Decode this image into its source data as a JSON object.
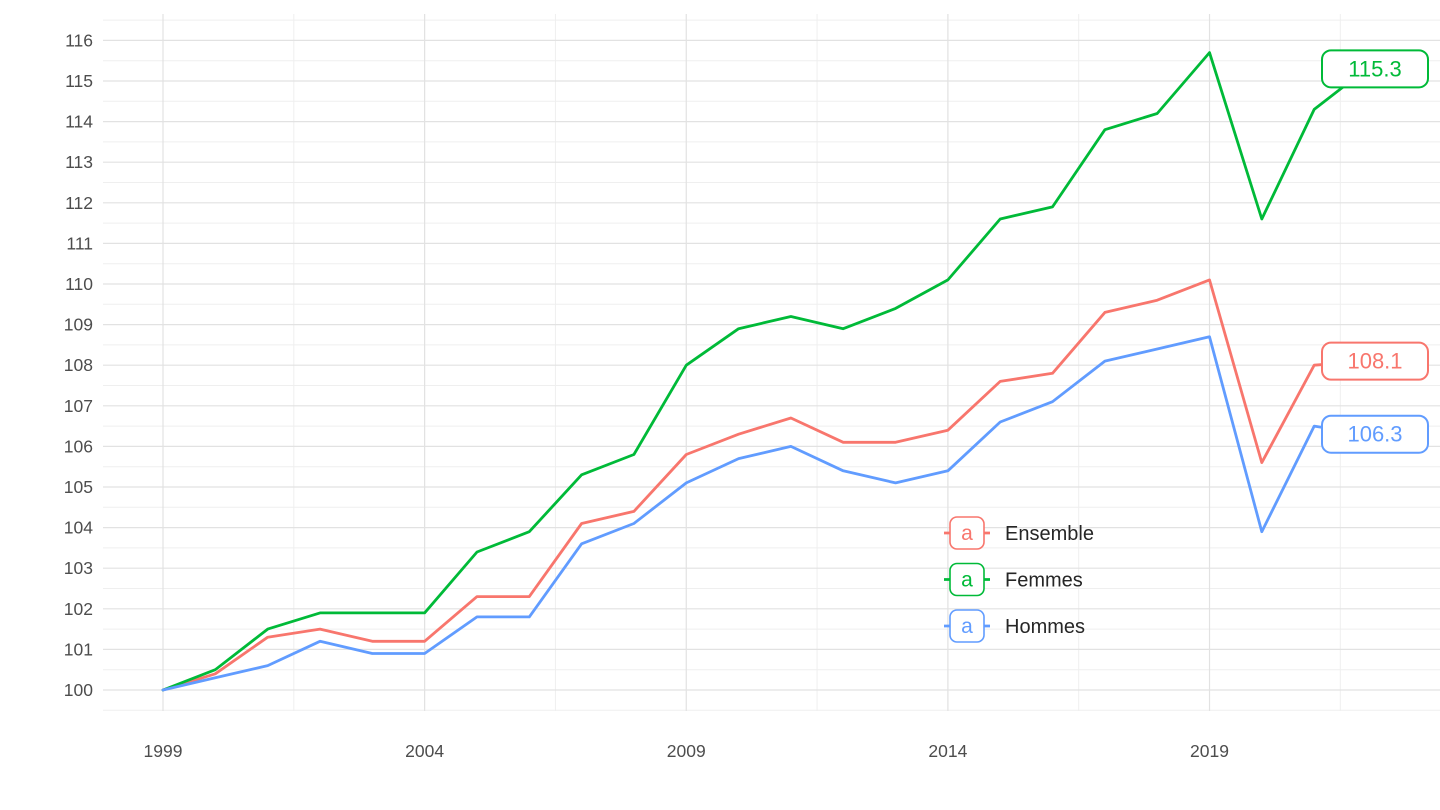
{
  "figure": {
    "background": "#ffffff",
    "grid_major_color": "#e2e2e2",
    "grid_minor_color": "#efefef",
    "axis_text_color": "#4d4d4d",
    "legend_text_color": "#262626",
    "label_box_fill": "#ffffff"
  },
  "legend": {
    "key_glyph": "a",
    "items": [
      {
        "label": "Ensemble",
        "color": "#F8766D"
      },
      {
        "label": "Femmes",
        "color": "#00BA38"
      },
      {
        "label": "Hommes",
        "color": "#619CFF"
      }
    ]
  },
  "chart_data": {
    "type": "line",
    "title": "",
    "xlabel": "",
    "ylabel": "",
    "x": [
      1999,
      2000,
      2001,
      2002,
      2003,
      2004,
      2005,
      2006,
      2007,
      2008,
      2009,
      2010,
      2011,
      2012,
      2013,
      2014,
      2015,
      2016,
      2017,
      2018,
      2019,
      2020,
      2021,
      2022
    ],
    "series": [
      {
        "name": "Ensemble",
        "color": "#F8766D",
        "end_label": "108.1",
        "values": [
          100,
          100.4,
          101.3,
          101.5,
          101.2,
          101.2,
          102.3,
          102.3,
          104.1,
          104.4,
          105.8,
          106.3,
          106.7,
          106.1,
          106.1,
          106.4,
          107.6,
          107.8,
          109.3,
          109.6,
          110.1,
          105.6,
          108.0,
          108.1
        ]
      },
      {
        "name": "Femmes",
        "color": "#00BA38",
        "end_label": "115.3",
        "values": [
          100,
          100.5,
          101.5,
          101.9,
          101.9,
          101.9,
          103.4,
          103.9,
          105.3,
          105.8,
          108.0,
          108.9,
          109.2,
          108.9,
          109.4,
          110.1,
          111.6,
          111.9,
          113.8,
          114.2,
          115.7,
          111.6,
          114.3,
          115.3
        ]
      },
      {
        "name": "Hommes",
        "color": "#619CFF",
        "end_label": "106.3",
        "values": [
          100,
          100.3,
          100.6,
          101.2,
          100.9,
          100.9,
          101.8,
          101.8,
          103.6,
          104.1,
          105.1,
          105.7,
          106.0,
          105.4,
          105.1,
          105.4,
          106.6,
          107.1,
          108.1,
          108.4,
          108.7,
          103.9,
          106.5,
          106.3
        ]
      }
    ],
    "x_ticks": [
      1999,
      2004,
      2009,
      2014,
      2019
    ],
    "y_ticks": [
      100,
      101,
      102,
      103,
      104,
      105,
      106,
      107,
      108,
      109,
      110,
      111,
      112,
      113,
      114,
      115,
      116
    ],
    "ylim": [
      99.5,
      116.6
    ],
    "xlim": [
      1997.8,
      2023.4
    ],
    "grid": "major+minor",
    "legend_position": "inside-right-lower"
  }
}
